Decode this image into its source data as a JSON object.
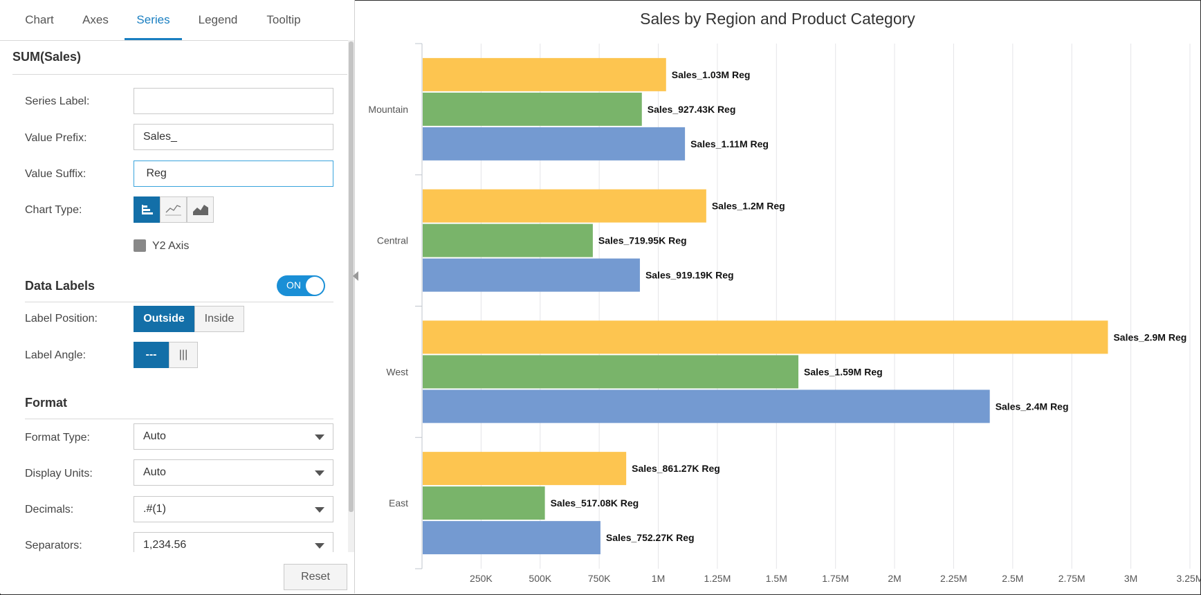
{
  "tabs": [
    "Chart",
    "Axes",
    "Series",
    "Legend",
    "Tooltip"
  ],
  "active_tab": 2,
  "series_title": "SUM(Sales)",
  "fields": {
    "series_label": {
      "label": "Series Label:",
      "value": ""
    },
    "value_prefix": {
      "label": "Value Prefix:",
      "value": "Sales_"
    },
    "value_suffix": {
      "label": "Value Suffix:",
      "value": " Reg"
    },
    "chart_type": {
      "label": "Chart Type:",
      "options": [
        "bar-chart-icon",
        "line-chart-icon",
        "area-chart-icon"
      ],
      "selected": 0
    },
    "y2_axis": {
      "label": "Y2 Axis",
      "checked": false
    }
  },
  "data_labels": {
    "title": "Data Labels",
    "toggle": "ON",
    "position": {
      "label": "Label Position:",
      "options": [
        "Outside",
        "Inside"
      ],
      "selected": "Outside"
    },
    "angle": {
      "label": "Label Angle:",
      "options": [
        "---",
        "|||"
      ],
      "selected": "---"
    }
  },
  "format": {
    "title": "Format",
    "format_type": {
      "label": "Format Type:",
      "value": "Auto"
    },
    "display_units": {
      "label": "Display Units:",
      "value": "Auto"
    },
    "decimals": {
      "label": "Decimals:",
      "value": ".#(1)"
    },
    "separators": {
      "label": "Separators:",
      "value": "1,234.56"
    }
  },
  "reset_label": "Reset",
  "colors": {
    "series_1": "#fdc550",
    "series_2": "#79b46a",
    "series_3": "#749ad1",
    "accent": "#1a7fc1"
  },
  "chart_data": {
    "type": "bar",
    "orientation": "horizontal",
    "title": "Sales by Region and Product Category",
    "categories": [
      "Mountain",
      "Central",
      "West",
      "East"
    ],
    "series": [
      {
        "values": [
          1030000,
          1200000,
          2900000,
          861270
        ],
        "labels": [
          "Sales_1.03M Reg",
          "Sales_1.2M Reg",
          "Sales_2.9M Reg",
          "Sales_861.27K Reg"
        ],
        "color": "#fdc550"
      },
      {
        "values": [
          927430,
          719950,
          1590000,
          517080
        ],
        "labels": [
          "Sales_927.43K Reg",
          "Sales_719.95K Reg",
          "Sales_1.59M Reg",
          "Sales_517.08K Reg"
        ],
        "color": "#79b46a"
      },
      {
        "values": [
          1110000,
          919190,
          2400000,
          752270
        ],
        "labels": [
          "Sales_1.11M Reg",
          "Sales_919.19K Reg",
          "Sales_2.4M Reg",
          "Sales_752.27K Reg"
        ],
        "color": "#749ad1"
      }
    ],
    "xlim": [
      0,
      3250000
    ],
    "ticks": [
      250000,
      500000,
      750000,
      1000000,
      1250000,
      1500000,
      1750000,
      2000000,
      2250000,
      2500000,
      2750000,
      3000000,
      3250000
    ],
    "tick_labels": [
      "250K",
      "500K",
      "750K",
      "1M",
      "1.25M",
      "1.5M",
      "1.75M",
      "2M",
      "2.25M",
      "2.5M",
      "2.75M",
      "3M",
      "3.25M"
    ],
    "grid": true,
    "legend": "none"
  }
}
